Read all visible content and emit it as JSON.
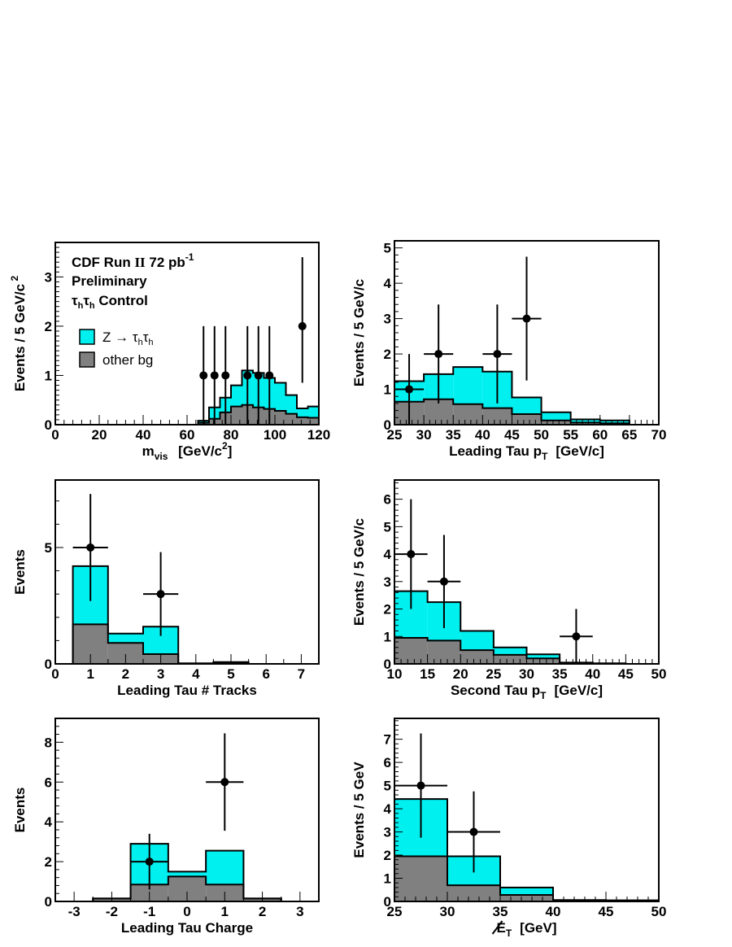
{
  "colors": {
    "signal": "#00f0f0",
    "background": "#808080",
    "data": "#000000"
  },
  "chart_data": [
    {
      "id": "mvis",
      "type": "histogram",
      "bin_edges": [
        0,
        5,
        10,
        15,
        20,
        25,
        30,
        35,
        40,
        45,
        50,
        55,
        60,
        65,
        70,
        75,
        80,
        85,
        90,
        95,
        100,
        105,
        110,
        115,
        120
      ],
      "series": [
        {
          "name": "other bg",
          "stack_top": [
            0,
            0,
            0,
            0,
            0,
            0,
            0,
            0,
            0,
            0,
            0,
            0,
            0,
            0.04,
            0.12,
            0.25,
            0.37,
            0.4,
            0.35,
            0.32,
            0.28,
            0.22,
            0.15,
            0.14
          ]
        },
        {
          "name": "Z → τhτh",
          "stack_top": [
            0,
            0,
            0,
            0,
            0,
            0,
            0,
            0,
            0,
            0,
            0,
            0,
            0,
            0.08,
            0.35,
            0.55,
            0.8,
            1.1,
            1.05,
            0.95,
            0.85,
            0.6,
            0.33,
            0.37
          ]
        }
      ],
      "data_points": {
        "x": [
          67.5,
          72.5,
          77.5,
          87.5,
          92.5,
          97.5,
          112.5
        ],
        "y": [
          1,
          1,
          1,
          1,
          1,
          1,
          2
        ],
        "yerr_low": [
          1,
          1,
          1,
          1,
          1,
          1,
          1.15
        ],
        "yerr_high": [
          1,
          1,
          1,
          1,
          1,
          1,
          1.4
        ],
        "xerr": [
          0,
          0,
          0,
          0,
          0,
          0,
          0
        ]
      },
      "xlim": [
        0,
        120
      ],
      "ylim": [
        0,
        3.7
      ],
      "xticks": [
        0,
        20,
        40,
        60,
        80,
        100,
        120
      ],
      "yticks": [
        0,
        1,
        2,
        3
      ],
      "xlabel": "m",
      "xlabel_sub": "vis",
      "xlabel_unit": "[GeV/c",
      "xlabel_unit_sup": "2",
      "xlabel_unit_close": "]",
      "ylabel": "Events / 5 GeV/c",
      "ylabel_sup": "2",
      "info": {
        "line1": "CDF Run ",
        "line1_run": "II",
        "line1_lumi": "72 pb",
        "line1_lumi_sup": "-1",
        "line2": "Preliminary",
        "line3_tau": "τ",
        "line3_sub": "h",
        "line3_label": "Control"
      },
      "legend": {
        "signal_prefix": "Z → ",
        "signal_tau": "τ",
        "signal_sub": "h",
        "bg": "other bg"
      }
    },
    {
      "id": "lead-pt",
      "type": "histogram",
      "bin_edges": [
        25,
        30,
        35,
        40,
        45,
        50,
        55,
        60,
        65,
        70
      ],
      "series": [
        {
          "name": "other bg",
          "stack_top": [
            0.65,
            0.72,
            0.58,
            0.47,
            0.3,
            0.12,
            0.06,
            0.04,
            0
          ]
        },
        {
          "name": "Z → τhτh",
          "stack_top": [
            1.23,
            1.43,
            1.63,
            1.5,
            0.77,
            0.35,
            0.15,
            0.12,
            0
          ]
        }
      ],
      "data_points": {
        "x": [
          27.5,
          32.5,
          42.5,
          47.5
        ],
        "y": [
          1,
          2,
          2,
          3
        ],
        "yerr_low": [
          1,
          1.4,
          1.4,
          1.75
        ],
        "yerr_high": [
          1,
          1.4,
          1.4,
          1.75
        ],
        "xerr": [
          2.5,
          2.5,
          2.5,
          2.5
        ]
      },
      "xlim": [
        25,
        70
      ],
      "ylim": [
        0,
        5.2
      ],
      "xticks": [
        25,
        30,
        35,
        40,
        45,
        50,
        55,
        60,
        65,
        70
      ],
      "yticks": [
        0,
        1,
        2,
        3,
        4,
        5
      ],
      "xlabel": "Leading Tau p",
      "xlabel_sub": "T",
      "xlabel_unit": "[GeV/c]",
      "ylabel": "Events / 5 GeV/c"
    },
    {
      "id": "tracks",
      "type": "histogram",
      "bin_edges": [
        0.5,
        1.5,
        2.5,
        3.5,
        4.5,
        5.5,
        6.5
      ],
      "series": [
        {
          "name": "other bg",
          "stack_top": [
            1.7,
            0.9,
            0.42,
            0.02,
            0.04,
            0
          ]
        },
        {
          "name": "Z → τhτh",
          "stack_top": [
            4.2,
            1.3,
            1.6,
            0.02,
            0.08,
            0
          ]
        }
      ],
      "data_points": {
        "x": [
          1,
          3
        ],
        "y": [
          5,
          3
        ],
        "yerr_low": [
          2.3,
          1.8
        ],
        "yerr_high": [
          2.3,
          1.8
        ],
        "xerr": [
          0.5,
          0.5
        ]
      },
      "xlim": [
        0,
        7.5
      ],
      "ylim": [
        0,
        7.9
      ],
      "xticks": [
        0,
        1,
        2,
        3,
        4,
        5,
        6,
        7
      ],
      "yticks": [
        0,
        5
      ],
      "xlabel": "Leading Tau # Tracks",
      "ylabel": "Events"
    },
    {
      "id": "second-pt",
      "type": "histogram",
      "bin_edges": [
        10,
        15,
        20,
        25,
        30,
        35,
        40,
        45,
        50
      ],
      "series": [
        {
          "name": "other bg",
          "stack_top": [
            0.95,
            0.85,
            0.5,
            0.33,
            0.2,
            0.04,
            0.02,
            0
          ]
        },
        {
          "name": "Z → τhτh",
          "stack_top": [
            2.65,
            2.25,
            1.2,
            0.6,
            0.35,
            0.05,
            0.02,
            0
          ]
        }
      ],
      "data_points": {
        "x": [
          12.5,
          17.5,
          37.5
        ],
        "y": [
          4,
          3,
          1
        ],
        "yerr_low": [
          2,
          1.7,
          1
        ],
        "yerr_high": [
          2,
          1.7,
          1
        ],
        "xerr": [
          2.5,
          2.5,
          2.5
        ]
      },
      "xlim": [
        10,
        50
      ],
      "ylim": [
        0,
        6.7
      ],
      "xticks": [
        10,
        15,
        20,
        25,
        30,
        35,
        40,
        45,
        50
      ],
      "yticks": [
        0,
        1,
        2,
        3,
        4,
        5,
        6
      ],
      "xlabel": "Second Tau p",
      "xlabel_sub": "T",
      "xlabel_unit": "[GeV/c]",
      "ylabel": "Events / 5 GeV/c"
    },
    {
      "id": "charge",
      "type": "histogram",
      "bin_edges": [
        -2.5,
        -1.5,
        -0.5,
        0.5,
        1.5,
        2.5
      ],
      "series": [
        {
          "name": "other bg",
          "stack_top": [
            0.15,
            0.85,
            1.25,
            0.85,
            0.15
          ]
        },
        {
          "name": "Z → τhτh",
          "stack_top": [
            0.15,
            2.9,
            1.5,
            2.55,
            0.15
          ]
        }
      ],
      "data_points": {
        "x": [
          -1,
          1
        ],
        "y": [
          2,
          6
        ],
        "yerr_low": [
          1.4,
          2.45
        ],
        "yerr_high": [
          1.4,
          2.45
        ],
        "xerr": [
          0.5,
          0.5
        ]
      },
      "xlim": [
        -3.5,
        3.5
      ],
      "ylim": [
        0,
        9.2
      ],
      "xticks": [
        -3,
        -2,
        -1,
        0,
        1,
        2,
        3
      ],
      "yticks": [
        0,
        2,
        4,
        6,
        8
      ],
      "xlabel": "Leading Tau Charge",
      "ylabel": "Events"
    },
    {
      "id": "met",
      "type": "histogram",
      "bin_edges": [
        25,
        30,
        35,
        40,
        45,
        50
      ],
      "series": [
        {
          "name": "other bg",
          "stack_top": [
            1.95,
            0.7,
            0.28,
            0.05,
            0.04
          ]
        },
        {
          "name": "Z → τhτh",
          "stack_top": [
            4.42,
            1.95,
            0.6,
            0.06,
            0.05
          ]
        }
      ],
      "data_points": {
        "x": [
          27.5,
          32.5
        ],
        "y": [
          5,
          3
        ],
        "yerr_low": [
          2.25,
          1.75
        ],
        "yerr_high": [
          2.25,
          1.75
        ],
        "xerr": [
          2.5,
          2.5
        ]
      },
      "xlim": [
        25,
        50
      ],
      "ylim": [
        0,
        7.9
      ],
      "xticks": [
        25,
        30,
        35,
        40,
        45,
        50
      ],
      "yticks": [
        0,
        1,
        2,
        3,
        4,
        5,
        6,
        7
      ],
      "xlabel": "E",
      "xlabel_sub": "T",
      "xlabel_unit": "[GeV]",
      "ylabel": "Events / 5 GeV"
    }
  ]
}
